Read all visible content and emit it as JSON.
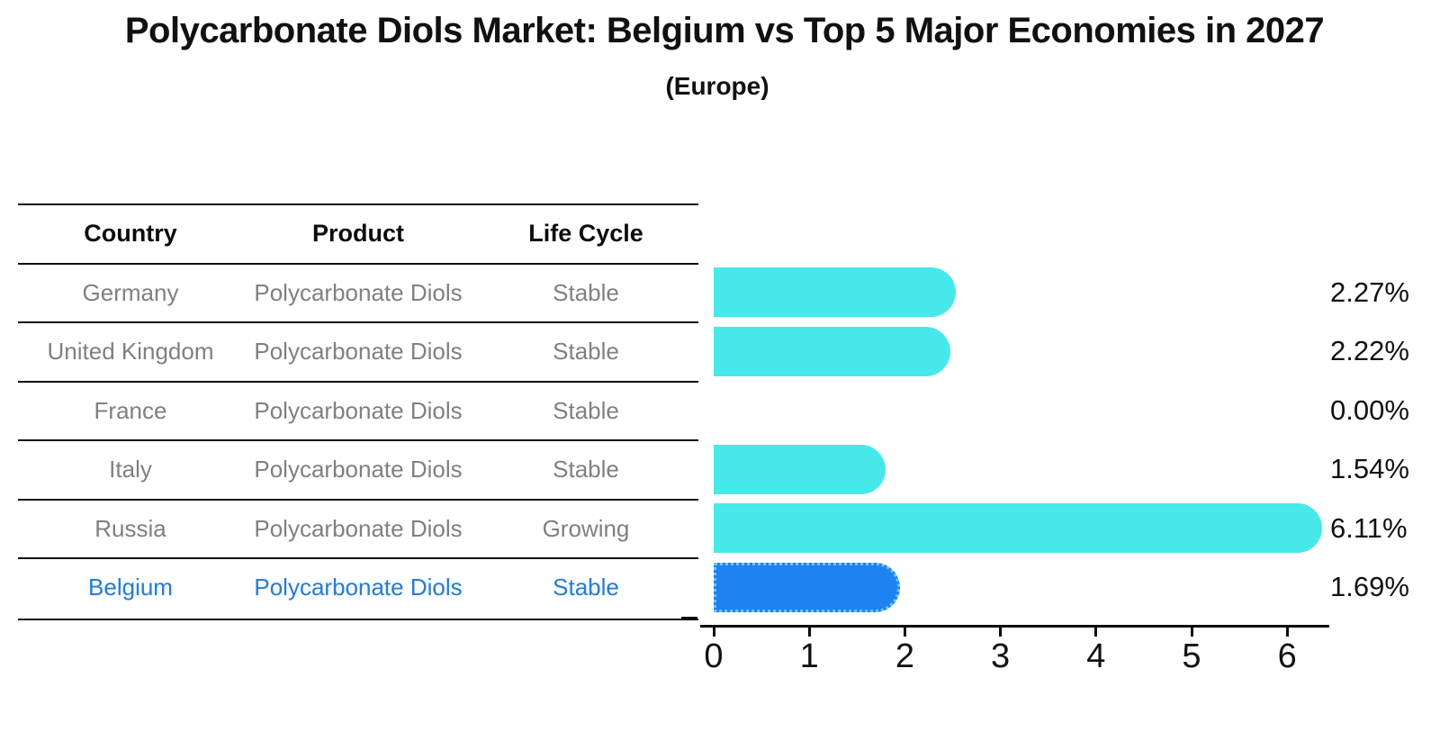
{
  "title": "Polycarbonate Diols Market: Belgium vs Top 5 Major Economies in 2027",
  "subtitle": "(Europe)",
  "table": {
    "headers": [
      "Country",
      "Product",
      "Life Cycle"
    ],
    "rows": [
      {
        "country": "Germany",
        "product": "Polycarbonate Diols",
        "life_cycle": "Stable",
        "highlight": false
      },
      {
        "country": "United Kingdom",
        "product": "Polycarbonate Diols",
        "life_cycle": "Stable",
        "highlight": false
      },
      {
        "country": "France",
        "product": "Polycarbonate Diols",
        "life_cycle": "Stable",
        "highlight": false
      },
      {
        "country": "Italy",
        "product": "Polycarbonate Diols",
        "life_cycle": "Stable",
        "highlight": false
      },
      {
        "country": "Russia",
        "product": "Polycarbonate Diols",
        "life_cycle": "Growing",
        "highlight": false
      },
      {
        "country": "Belgium",
        "product": "Polycarbonate Diols",
        "life_cycle": "Stable",
        "highlight": true
      }
    ]
  },
  "chart_data": {
    "type": "bar",
    "orientation": "horizontal",
    "title": "Polycarbonate Diols Market: Belgium vs Top 5 Major Economies in 2027",
    "subtitle": "(Europe)",
    "categories": [
      "Germany",
      "United Kingdom",
      "France",
      "Italy",
      "Russia",
      "Belgium"
    ],
    "values": [
      2.27,
      2.22,
      0.0,
      1.54,
      6.11,
      1.69
    ],
    "value_labels": [
      "2.27%",
      "2.22%",
      "0.00%",
      "1.54%",
      "6.11%",
      "1.69%"
    ],
    "xlabel": "",
    "ylabel": "",
    "xlim": [
      0,
      6.5
    ],
    "xticks": [
      0,
      1,
      2,
      3,
      4,
      5,
      6
    ],
    "grid": false,
    "legend": false,
    "highlight_index": 5,
    "highlight_category": "Belgium"
  },
  "colors": {
    "bar": "#47e8e9",
    "highlight_bar": "#1e82f0",
    "highlight_border": "#6fc8ee",
    "highlight_text": "#2b7cc9",
    "row_text": "#808080",
    "header_text": "#0c0c0c",
    "axis": "#0c0c0c"
  }
}
